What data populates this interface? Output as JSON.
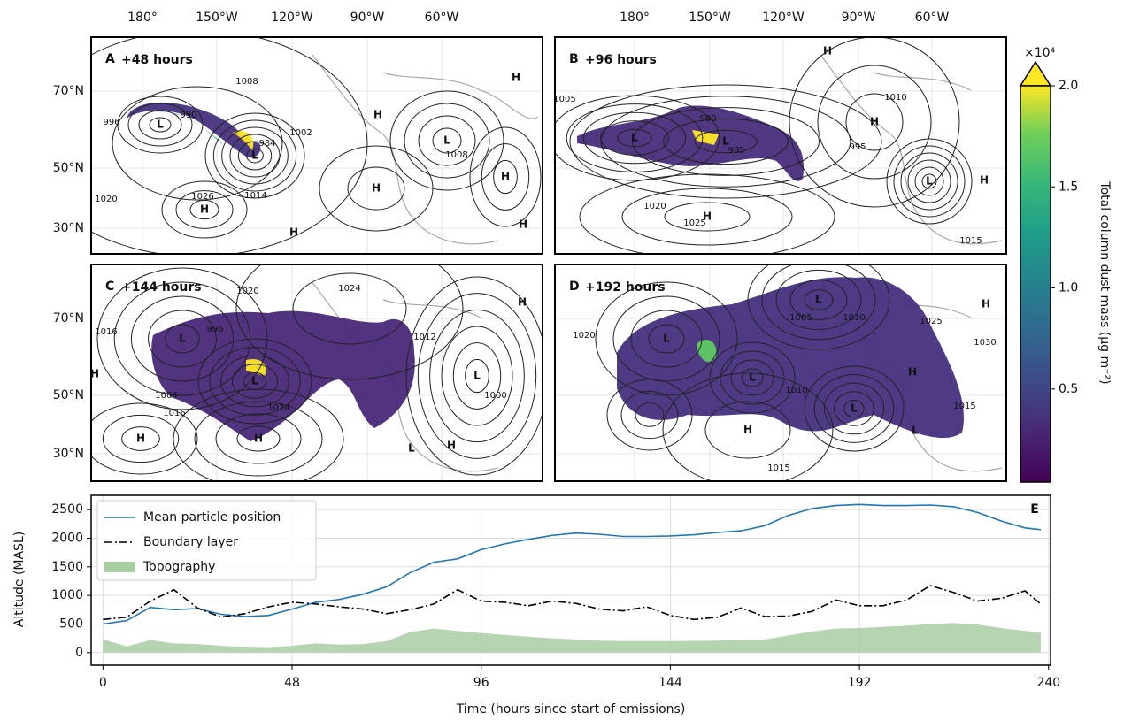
{
  "maps": {
    "lon_labels": [
      "180°",
      "150°W",
      "120°W",
      "90°W",
      "60°W"
    ],
    "lat_labels": [
      "70°N",
      "50°N",
      "30°N"
    ],
    "panels": [
      {
        "letter": "A",
        "time": "+48 hours",
        "labels": [
          "H",
          "H",
          "H",
          "H",
          "H",
          "H",
          "H",
          "L",
          "L",
          "L",
          "1008",
          "990",
          "996",
          "984",
          "1020",
          "1026",
          "1014",
          "1002",
          "1008"
        ]
      },
      {
        "letter": "B",
        "time": "+96 hours",
        "labels": [
          "H",
          "H",
          "H",
          "H",
          "L",
          "L",
          "L",
          "1005",
          "990",
          "985",
          "995",
          "1010",
          "1020",
          "1025",
          "1015"
        ]
      },
      {
        "letter": "C",
        "time": "+144 hours",
        "labels": [
          "H",
          "H",
          "H",
          "H",
          "H",
          "L",
          "L",
          "L",
          "L",
          "1020",
          "1024",
          "1016",
          "996",
          "1004",
          "1016",
          "1024",
          "1012",
          "1000"
        ]
      },
      {
        "letter": "D",
        "time": "+192 hours",
        "labels": [
          "H",
          "H",
          "H",
          "L",
          "L",
          "L",
          "L",
          "L",
          "1005",
          "1010",
          "1025",
          "1030",
          "1020",
          "1015",
          "1010",
          "1015"
        ]
      }
    ]
  },
  "colorbar": {
    "label": "Total column dust mass (μg m⁻²)",
    "multiplier": "×10⁴",
    "clim": [
      0.04,
      2.0
    ],
    "ticks": [
      0.5,
      {
        "value": 1,
        "label": "1.0"
      },
      1.5,
      {
        "value": 2,
        "label": "2.0"
      }
    ]
  },
  "chart_data": {
    "type": "line",
    "panel_label": "E",
    "xlabel": "Time (hours since start of emissions)",
    "ylabel": "Altitude (MASL)",
    "x": [
      0,
      6,
      12,
      18,
      24,
      30,
      36,
      42,
      48,
      54,
      60,
      66,
      72,
      78,
      84,
      90,
      96,
      102,
      108,
      114,
      120,
      126,
      132,
      138,
      144,
      150,
      156,
      162,
      168,
      174,
      180,
      186,
      192,
      198,
      204,
      210,
      216,
      222,
      228,
      234,
      238
    ],
    "series": [
      {
        "name": "Mean particle position",
        "color": "#1f77b4",
        "style": "solid",
        "values": [
          500,
          560,
          790,
          750,
          770,
          670,
          630,
          650,
          760,
          880,
          930,
          1020,
          1150,
          1400,
          1580,
          1640,
          1800,
          1900,
          1980,
          2050,
          2090,
          2070,
          2030,
          2030,
          2040,
          2060,
          2100,
          2130,
          2220,
          2400,
          2520,
          2570,
          2590,
          2570,
          2570,
          2580,
          2550,
          2450,
          2300,
          2180,
          2150
        ]
      },
      {
        "name": "Boundary layer",
        "color": "#000000",
        "style": "dashdot",
        "values": [
          580,
          620,
          900,
          1100,
          780,
          620,
          680,
          800,
          880,
          850,
          800,
          760,
          680,
          750,
          850,
          1100,
          900,
          880,
          820,
          900,
          860,
          760,
          730,
          800,
          650,
          580,
          620,
          780,
          630,
          640,
          720,
          920,
          820,
          820,
          920,
          1170,
          1050,
          900,
          950,
          1080,
          850
        ]
      },
      {
        "name": "Topography",
        "color": "#a9cda3",
        "style": "area",
        "values": [
          230,
          110,
          220,
          160,
          150,
          120,
          90,
          80,
          120,
          160,
          140,
          150,
          200,
          360,
          420,
          380,
          340,
          310,
          280,
          250,
          230,
          210,
          200,
          200,
          200,
          205,
          210,
          220,
          230,
          300,
          370,
          420,
          430,
          450,
          470,
          500,
          520,
          490,
          430,
          380,
          350
        ]
      }
    ],
    "xlim": [
      -3,
      240.5
    ],
    "ylim": [
      -220,
      2750
    ],
    "xticks": [
      0,
      48,
      96,
      144,
      192,
      240
    ],
    "yticks": [
      0,
      500,
      1000,
      1500,
      2000,
      2500
    ],
    "grid": true,
    "legend": "upper left"
  }
}
